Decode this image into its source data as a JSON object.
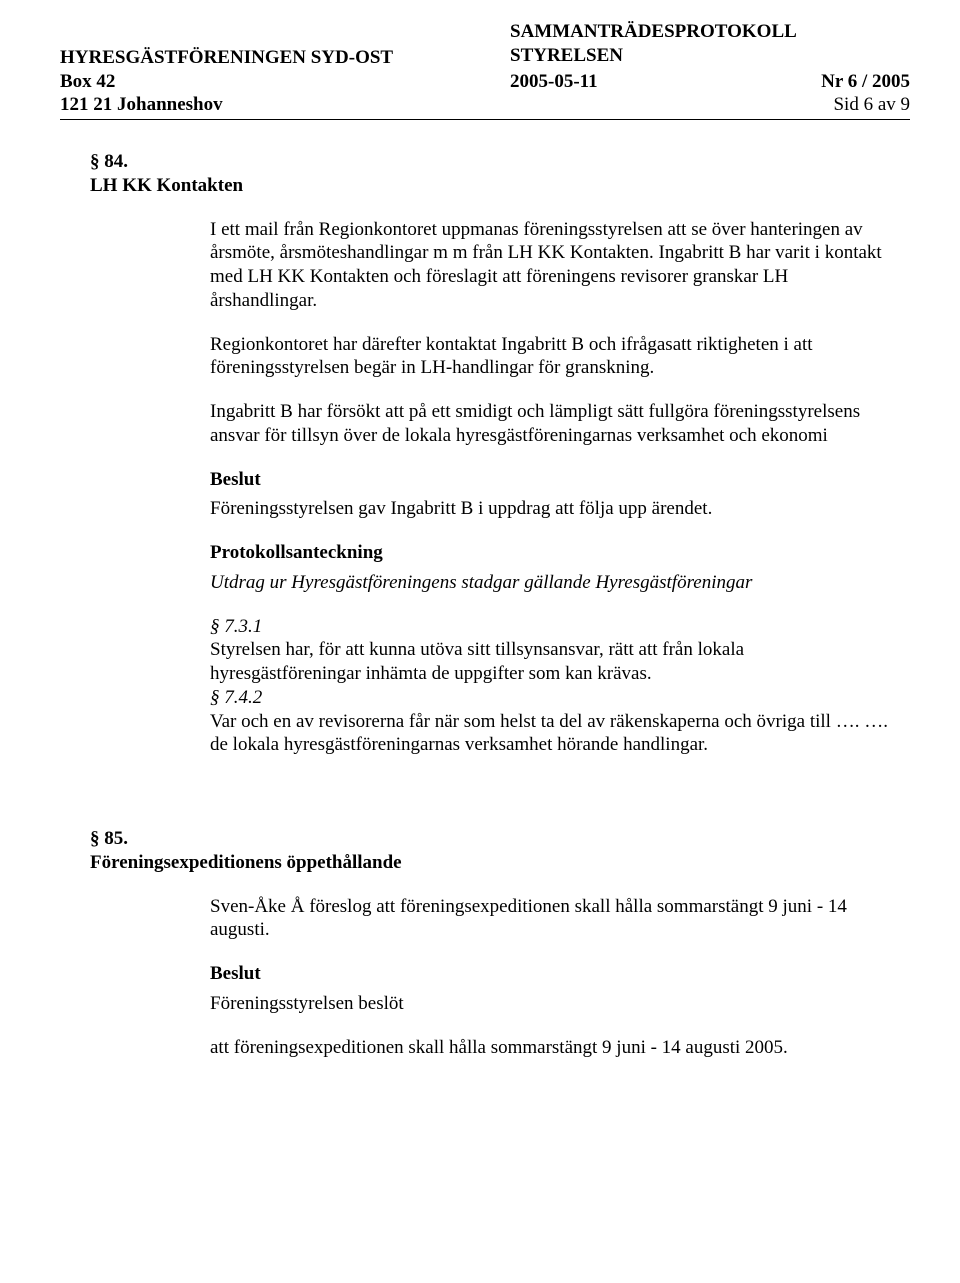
{
  "header": {
    "org_name": "HYRESGÄSTFÖRENINGEN SYD-OST",
    "box": "Box 42",
    "city": "121 21  Johanneshov",
    "doc_title": "SAMMANTRÄDESPROTOKOLL",
    "subtitle": "STYRELSEN",
    "date": "2005-05-11",
    "issue": "Nr 6 / 2005",
    "page": "Sid 6 av 9"
  },
  "s84": {
    "num": "§ 84.",
    "title": "LH KK Kontakten",
    "p1": "I ett mail från Regionkontoret uppmanas föreningsstyrelsen att se över hanteringen av årsmöte, årsmöteshandlingar m m från LH KK Kontakten. Ingabritt B har varit i kontakt med LH KK Kontakten och föreslagit att föreningens revisorer granskar LH årshandlingar.",
    "p2": "Regionkontoret har därefter kontaktat Ingabritt B och ifrågasatt riktigheten i att föreningsstyrelsen begär in LH-handlingar för granskning.",
    "p3": "Ingabritt B har försökt att på ett smidigt och lämpligt sätt fullgöra föreningsstyrelsens ansvar för tillsyn över de lokala hyresgästföreningarnas verksamhet och ekonomi",
    "beslut_label": "Beslut",
    "p4": "Föreningsstyrelsen gav Ingabritt B i uppdrag att följa upp ärendet.",
    "proto_label": "Protokollsanteckning",
    "p5": "Utdrag ur Hyresgästföreningens stadgar gällande Hyresgästföreningar",
    "ref1": "§ 7.3.1",
    "p6": "Styrelsen har, för att kunna utöva sitt tillsynsansvar, rätt att från lokala hyresgästföreningar inhämta de uppgifter som kan krävas.",
    "ref2": "§ 7.4.2",
    "p7": "Var och en av revisorerna får när som helst ta del av räkenskaperna och övriga till …. …. de lokala hyresgästföreningarnas verksamhet hörande handlingar."
  },
  "s85": {
    "num": "§ 85.",
    "title": "Föreningsexpeditionens öppethållande",
    "p1": "Sven-Åke Å föreslog att föreningsexpeditionen skall hålla sommarstängt 9 juni - 14 augusti.",
    "beslut_label": "Beslut",
    "p2": "Föreningsstyrelsen beslöt",
    "p3": "att föreningsexpeditionen skall hålla sommarstängt 9 juni - 14 augusti 2005."
  }
}
